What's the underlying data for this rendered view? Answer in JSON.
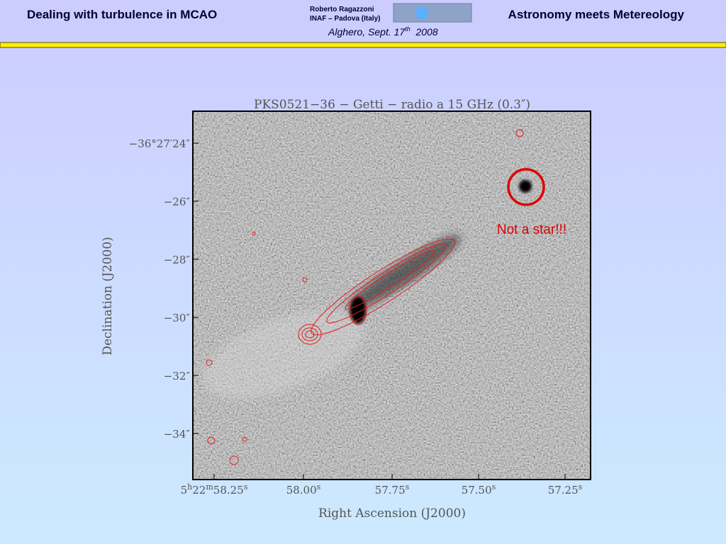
{
  "header": {
    "left_title": "Dealing with turbulence in MCAO",
    "author": "Roberto Ragazzoni",
    "affiliation": "INAF – Padova (Italy)",
    "event": [
      "Alghero, Sept. 17",
      "th",
      "  2008"
    ],
    "right_title": "Astronomy meets Metereology"
  },
  "figure": {
    "title": "PKS0521−36 − Getti − radio a 15 GHz (0.3″)",
    "y_axis_label": "Declination (J2000)",
    "x_axis_label": "Right Ascension (J2000)",
    "y_tick_labels": [
      "−36°27′24″",
      "−26″",
      "−28″",
      "−30″",
      "−32″",
      "−34″"
    ],
    "x_tick_labels": [
      [
        "5",
        "h",
        "22",
        "m",
        "58.25",
        "s"
      ],
      [
        "58.00",
        "s"
      ],
      [
        "57.75",
        "s"
      ],
      [
        "57.50",
        "s"
      ],
      [
        "57.25",
        "s"
      ]
    ],
    "annotation": "Not a star!!!"
  }
}
